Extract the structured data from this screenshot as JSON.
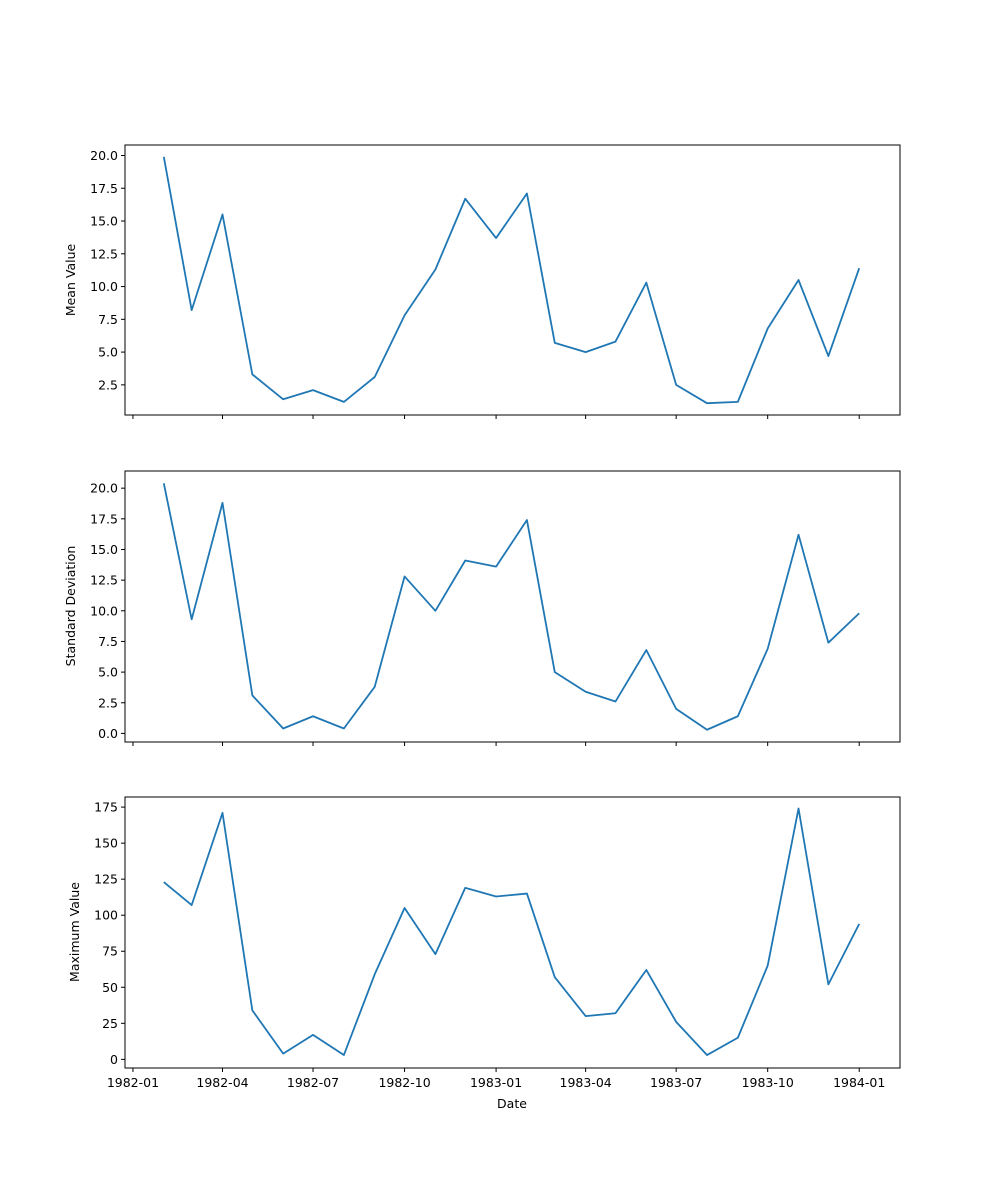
{
  "chart_data": [
    {
      "type": "line",
      "title": "",
      "xlabel": "",
      "ylabel": "Mean Value",
      "color": "#1f77b4",
      "x": [
        "1982-02",
        "1982-03",
        "1982-04",
        "1982-05",
        "1982-06",
        "1982-07",
        "1982-08",
        "1982-09",
        "1982-10",
        "1982-11",
        "1982-12",
        "1983-01",
        "1983-02",
        "1983-03",
        "1983-04",
        "1983-05",
        "1983-06",
        "1983-07",
        "1983-08",
        "1983-09",
        "1983-10",
        "1983-11",
        "1983-12",
        "1984-01"
      ],
      "values": [
        19.9,
        8.2,
        15.5,
        3.3,
        1.4,
        2.1,
        1.2,
        3.1,
        7.8,
        11.3,
        16.7,
        13.7,
        17.1,
        5.7,
        5.0,
        5.8,
        10.3,
        2.5,
        1.1,
        1.2,
        6.8,
        10.5,
        4.7,
        11.4
      ],
      "ylim": [
        0.2,
        20.8
      ],
      "yticks": [
        2.5,
        5.0,
        7.5,
        10.0,
        12.5,
        15.0,
        17.5,
        20.0
      ],
      "ytick_labels": [
        "2.5",
        "5.0",
        "7.5",
        "10.0",
        "12.5",
        "15.0",
        "17.5",
        "20.0"
      ],
      "show_xtick_labels": false
    },
    {
      "type": "line",
      "title": "",
      "xlabel": "",
      "ylabel": "Standard Deviation",
      "color": "#1f77b4",
      "x": [
        "1982-02",
        "1982-03",
        "1982-04",
        "1982-05",
        "1982-06",
        "1982-07",
        "1982-08",
        "1982-09",
        "1982-10",
        "1982-11",
        "1982-12",
        "1983-01",
        "1983-02",
        "1983-03",
        "1983-04",
        "1983-05",
        "1983-06",
        "1983-07",
        "1983-08",
        "1983-09",
        "1983-10",
        "1983-11",
        "1983-12",
        "1984-01"
      ],
      "values": [
        20.4,
        9.3,
        18.8,
        3.1,
        0.4,
        1.4,
        0.4,
        3.8,
        12.8,
        10.0,
        14.1,
        13.6,
        17.4,
        5.0,
        3.4,
        2.6,
        6.8,
        2.0,
        0.3,
        1.4,
        6.9,
        16.2,
        7.4,
        9.8
      ],
      "ylim": [
        -0.7,
        21.4
      ],
      "yticks": [
        0.0,
        2.5,
        5.0,
        7.5,
        10.0,
        12.5,
        15.0,
        17.5,
        20.0
      ],
      "ytick_labels": [
        "0.0",
        "2.5",
        "5.0",
        "7.5",
        "10.0",
        "12.5",
        "15.0",
        "17.5",
        "20.0"
      ],
      "show_xtick_labels": false
    },
    {
      "type": "line",
      "title": "",
      "xlabel": "Date",
      "ylabel": "Maximum Value",
      "color": "#1f77b4",
      "x": [
        "1982-02",
        "1982-03",
        "1982-04",
        "1982-05",
        "1982-06",
        "1982-07",
        "1982-08",
        "1982-09",
        "1982-10",
        "1982-11",
        "1982-12",
        "1983-01",
        "1983-02",
        "1983-03",
        "1983-04",
        "1983-05",
        "1983-06",
        "1983-07",
        "1983-08",
        "1983-09",
        "1983-10",
        "1983-11",
        "1983-12",
        "1984-01"
      ],
      "values": [
        123,
        107,
        171,
        34,
        4,
        17,
        3,
        59,
        105,
        73,
        119,
        113,
        115,
        57,
        30,
        32,
        62,
        26,
        3,
        15,
        65,
        174,
        52,
        94
      ],
      "ylim": [
        -6,
        182
      ],
      "yticks": [
        0,
        25,
        50,
        75,
        100,
        125,
        150,
        175
      ],
      "ytick_labels": [
        "0",
        "25",
        "50",
        "75",
        "100",
        "125",
        "150",
        "175"
      ],
      "show_xtick_labels": true
    }
  ],
  "x_axis": {
    "ticks": [
      "1982-01",
      "1982-04",
      "1982-07",
      "1982-10",
      "1983-01",
      "1983-04",
      "1983-07",
      "1983-10",
      "1984-01"
    ],
    "tick_labels": [
      "1982-01",
      "1982-04",
      "1982-07",
      "1982-10",
      "1983-01",
      "1983-04",
      "1983-07",
      "1983-10",
      "1984-01"
    ],
    "xlim": [
      "1981-12-24",
      "1984-02-11"
    ]
  }
}
